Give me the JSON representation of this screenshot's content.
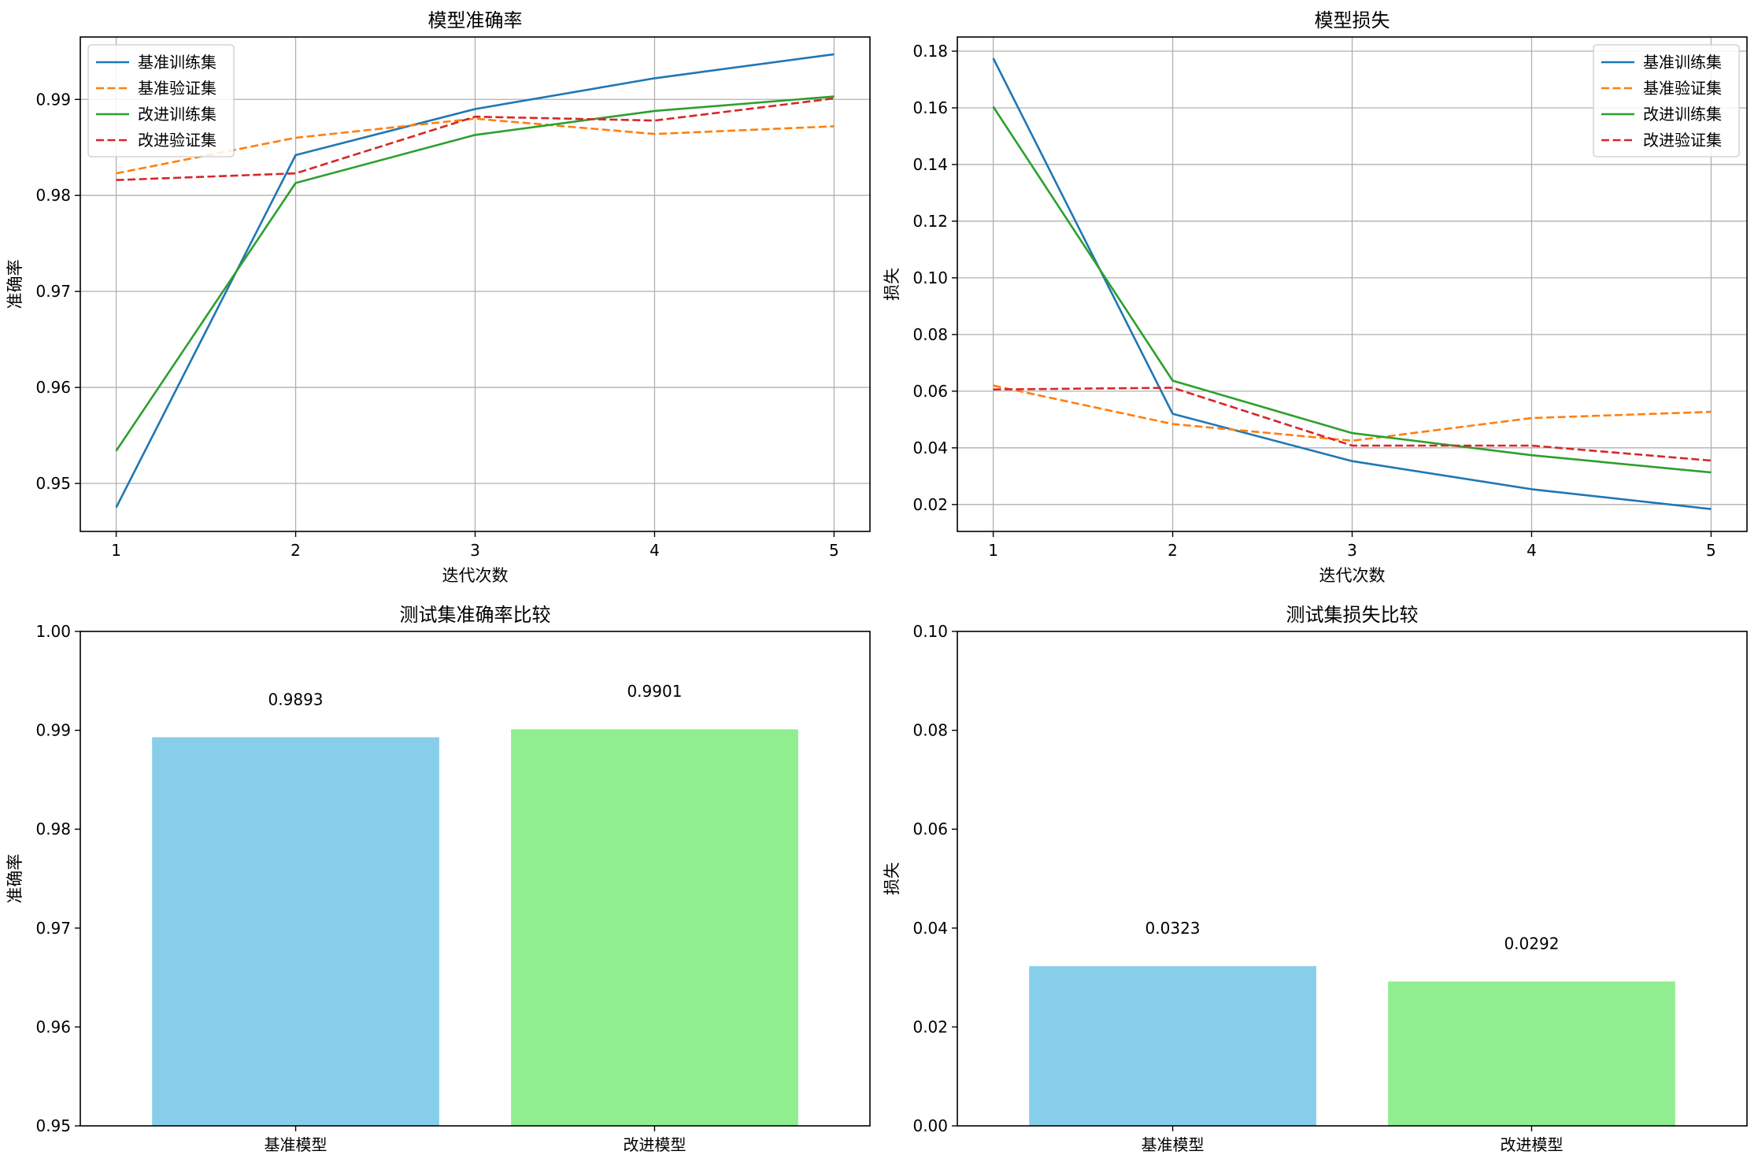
{
  "colors": {
    "series": [
      "#1f77b4",
      "#ff7f0e",
      "#2ca02c",
      "#d62728"
    ],
    "bars": [
      "#87ceeb",
      "#90ee90"
    ],
    "grid": "#b0b0b0"
  },
  "chart_data": [
    {
      "type": "line",
      "title": "模型准确率",
      "xlabel": "迭代次数",
      "ylabel": "准确率",
      "x": [
        1,
        2,
        3,
        4,
        5
      ],
      "xlim": [
        0.8,
        5.2
      ],
      "ylim": [
        0.945,
        0.9965
      ],
      "xticks": [
        "1",
        "2",
        "3",
        "4",
        "5"
      ],
      "yticks": [
        0.95,
        0.96,
        0.97,
        0.98,
        0.99
      ],
      "ytick_labels": [
        "0.95",
        "0.96",
        "0.97",
        "0.98",
        "0.99"
      ],
      "grid": true,
      "legend": "top-left",
      "series": [
        {
          "name": "基准训练集",
          "style": "solid",
          "values": [
            0.9475,
            0.9842,
            0.989,
            0.9922,
            0.9947
          ]
        },
        {
          "name": "基准验证集",
          "style": "dashed",
          "values": [
            0.9823,
            0.986,
            0.988,
            0.9864,
            0.9872
          ]
        },
        {
          "name": "改进训练集",
          "style": "solid",
          "values": [
            0.9534,
            0.9813,
            0.9863,
            0.9888,
            0.9903
          ]
        },
        {
          "name": "改进验证集",
          "style": "dashed",
          "values": [
            0.9816,
            0.9823,
            0.9882,
            0.9878,
            0.9901
          ]
        }
      ]
    },
    {
      "type": "line",
      "title": "模型损失",
      "xlabel": "迭代次数",
      "ylabel": "损失",
      "x": [
        1,
        2,
        3,
        4,
        5
      ],
      "xlim": [
        0.8,
        5.2
      ],
      "ylim": [
        0.0105,
        0.185
      ],
      "xticks": [
        "1",
        "2",
        "3",
        "4",
        "5"
      ],
      "yticks": [
        0.02,
        0.04,
        0.06,
        0.08,
        0.1,
        0.12,
        0.14,
        0.16,
        0.18
      ],
      "ytick_labels": [
        "0.02",
        "0.04",
        "0.06",
        "0.08",
        "0.10",
        "0.12",
        "0.14",
        "0.16",
        "0.18"
      ],
      "grid": true,
      "legend": "top-right",
      "series": [
        {
          "name": "基准训练集",
          "style": "solid",
          "values": [
            0.1775,
            0.052,
            0.0353,
            0.0254,
            0.0184
          ]
        },
        {
          "name": "基准验证集",
          "style": "dashed",
          "values": [
            0.062,
            0.0484,
            0.0425,
            0.0505,
            0.0527
          ]
        },
        {
          "name": "改进训练集",
          "style": "solid",
          "values": [
            0.1604,
            0.0637,
            0.0452,
            0.0374,
            0.0313
          ]
        },
        {
          "name": "改进验证集",
          "style": "dashed",
          "values": [
            0.0606,
            0.0612,
            0.0408,
            0.0408,
            0.0355
          ]
        }
      ]
    },
    {
      "type": "bar",
      "title": "测试集准确率比较",
      "xlabel": "",
      "ylabel": "准确率",
      "categories": [
        "基准模型",
        "改进模型"
      ],
      "values": [
        0.9893,
        0.9901
      ],
      "value_labels": [
        "0.9893",
        "0.9901"
      ],
      "ylim": [
        0.95,
        1.0
      ],
      "yticks": [
        0.95,
        0.96,
        0.97,
        0.98,
        0.99,
        1.0
      ],
      "ytick_labels": [
        "0.95",
        "0.96",
        "0.97",
        "0.98",
        "0.99",
        "1.00"
      ],
      "grid": false
    },
    {
      "type": "bar",
      "title": "测试集损失比较",
      "xlabel": "",
      "ylabel": "损失",
      "categories": [
        "基准模型",
        "改进模型"
      ],
      "values": [
        0.0323,
        0.0292
      ],
      "value_labels": [
        "0.0323",
        "0.0292"
      ],
      "ylim": [
        0.0,
        0.1
      ],
      "yticks": [
        0.0,
        0.02,
        0.04,
        0.06,
        0.08,
        0.1
      ],
      "ytick_labels": [
        "0.00",
        "0.02",
        "0.04",
        "0.06",
        "0.08",
        "0.10"
      ],
      "grid": false
    }
  ]
}
